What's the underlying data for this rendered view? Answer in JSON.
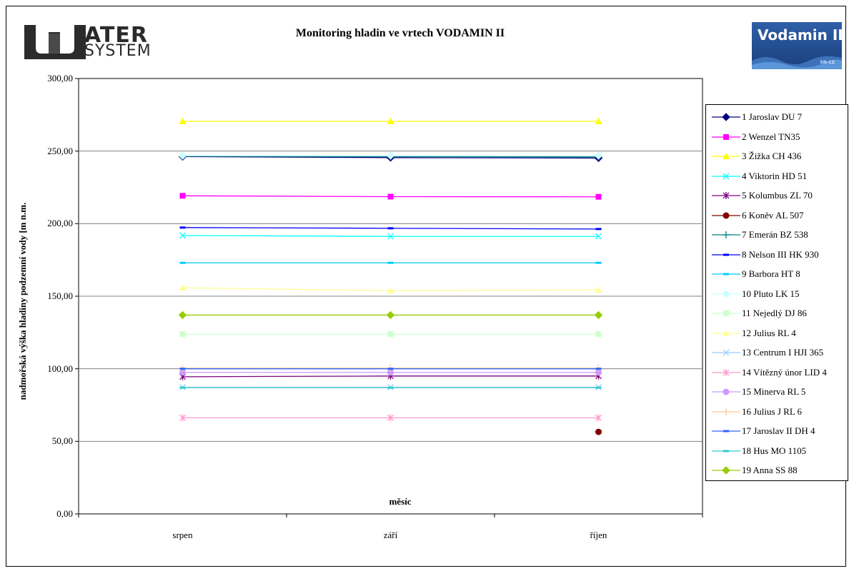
{
  "header": {
    "title": "Monitoring hladin ve vrtech VODAMIN II",
    "logo_left_top": "ATER",
    "logo_left_bottom": "SYSTEM",
    "logo_right_text": "Vodamin II",
    "logo_right_sub": "SN-CZ"
  },
  "chart_data": {
    "type": "line",
    "title": "Monitoring hladin ve vrtech VODAMIN II",
    "xlabel": "měsíc",
    "ylabel": "nadmořská výška hladiny podzemní vody [m n.m.",
    "categories": [
      "srpen",
      "září",
      "říjen"
    ],
    "ylim": [
      0,
      300
    ],
    "yticks": [
      "0,00",
      "50,00",
      "100,00",
      "150,00",
      "200,00",
      "250,00",
      "300,00"
    ],
    "grid": true,
    "legend_position": "right",
    "series": [
      {
        "name": "1 Jaroslav DU 7",
        "values": [
          246.2,
          245.5,
          245.2
        ],
        "color": "#000080",
        "marker": "diamond"
      },
      {
        "name": "2 Wenzel TN35",
        "values": [
          219.2,
          218.6,
          218.5
        ],
        "color": "#ff00ff",
        "marker": "square"
      },
      {
        "name": "3 Žižka CH 436",
        "values": [
          270.5,
          270.5,
          270.5
        ],
        "color": "#ffff00",
        "marker": "triangle"
      },
      {
        "name": "4 Viktorin HD 51",
        "values": [
          191.8,
          191.2,
          191.2
        ],
        "color": "#00ffff",
        "marker": "x"
      },
      {
        "name": "5 Kolumbus ZL 70",
        "values": [
          94.5,
          95.0,
          95.0
        ],
        "color": "#800080",
        "marker": "star"
      },
      {
        "name": "6 Koněv AL 507",
        "values": [
          null,
          null,
          56.5
        ],
        "color": "#800000",
        "marker": "circle"
      },
      {
        "name": "7 Emerán BZ 538",
        "values": [
          246.5,
          246.2,
          246.0
        ],
        "color": "#008080",
        "marker": "plus"
      },
      {
        "name": "8 Nelson III HK 930",
        "values": [
          197.3,
          196.8,
          196.3
        ],
        "color": "#0000ff",
        "marker": "dash"
      },
      {
        "name": "9 Barbora HT 8",
        "values": [
          173.0,
          173.0,
          173.0
        ],
        "color": "#00ccff",
        "marker": "dash"
      },
      {
        "name": "10 Pluto LK 15",
        "values": [
          246.8,
          246.8,
          246.8
        ],
        "color": "#ccffff",
        "marker": "diamond"
      },
      {
        "name": "11 Nejedlý DJ 86",
        "values": [
          123.8,
          123.8,
          123.8
        ],
        "color": "#ccffcc",
        "marker": "square"
      },
      {
        "name": "12 Julius RL 4",
        "values": [
          155.8,
          153.8,
          154.3
        ],
        "color": "#ffff99",
        "marker": "triangle"
      },
      {
        "name": "13 Centrum I HJI 365",
        "values": [
          87.3,
          87.3,
          87.3
        ],
        "color": "#99ccff",
        "marker": "x"
      },
      {
        "name": "14 Vítězný únor LID 4",
        "values": [
          66.2,
          66.2,
          66.2
        ],
        "color": "#ff99cc",
        "marker": "star"
      },
      {
        "name": "15 Minerva RL 5",
        "values": [
          97.5,
          97.5,
          97.5
        ],
        "color": "#cc99ff",
        "marker": "circle"
      },
      {
        "name": "16 Julius J RL 6",
        "values": [
          100.5,
          100.5,
          100.5
        ],
        "color": "#ffcc99",
        "marker": "plus"
      },
      {
        "name": "17 Jaroslav II DH 4",
        "values": [
          100.0,
          100.0,
          100.0
        ],
        "color": "#3366ff",
        "marker": "dash"
      },
      {
        "name": "18 Hus MO 1105",
        "values": [
          87.0,
          87.0,
          87.0
        ],
        "color": "#33cccc",
        "marker": "dash"
      },
      {
        "name": "19 Anna SS 88",
        "values": [
          137.0,
          137.0,
          137.0
        ],
        "color": "#99cc00",
        "marker": "diamond"
      }
    ]
  }
}
